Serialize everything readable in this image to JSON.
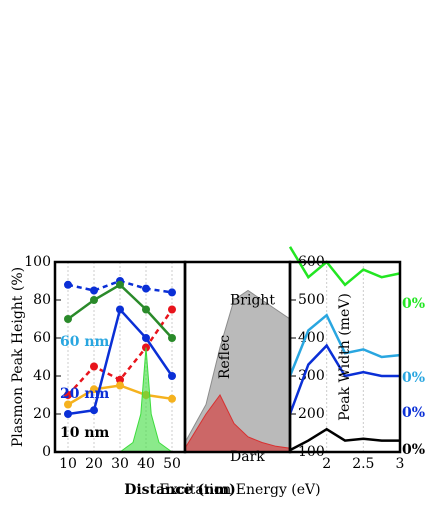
{
  "chart_data": [
    {
      "type": "line",
      "xlabel": "Distance (nm)",
      "ylabel": "Plasmon Peak Height (%)",
      "xlim": [
        5,
        55
      ],
      "xticks": [
        10,
        20,
        30,
        40,
        50
      ],
      "ylim": [
        0,
        100
      ],
      "yticks": [
        0,
        20,
        40,
        60,
        80,
        100
      ],
      "x": [
        10,
        20,
        30,
        40,
        50
      ],
      "series": [
        {
          "color": "#0a2fd6",
          "dash": true,
          "markers": true,
          "values": [
            88,
            85,
            90,
            86,
            84
          ]
        },
        {
          "color": "#e8141c",
          "dash": true,
          "markers": true,
          "values": [
            30,
            45,
            38,
            55,
            75
          ]
        },
        {
          "color": "#2a8a2a",
          "markers": true,
          "values": [
            70,
            80,
            88,
            75,
            60
          ]
        },
        {
          "color": "#f5b21e",
          "markers": true,
          "values": [
            25,
            33,
            35,
            30,
            28
          ]
        },
        {
          "color": "#0a2fd6",
          "markers": true,
          "values": [
            20,
            22,
            75,
            60,
            40
          ]
        },
        {
          "color": "#3ddc3d",
          "fill": true,
          "x": [
            30,
            35,
            38,
            40,
            42,
            45,
            50
          ],
          "values": [
            0,
            5,
            20,
            55,
            20,
            5,
            0
          ]
        }
      ],
      "annotations": [
        {
          "text": "60 nm",
          "color": "#29a6e0"
        },
        {
          "text": "20 nm",
          "color": "#0a2fd6"
        },
        {
          "text": "10 nm",
          "color": "#000000"
        }
      ]
    },
    {
      "type": "area",
      "ylabel": "Reflec",
      "xlim": [
        1.5,
        3
      ],
      "ylim": [
        0,
        1
      ],
      "x": [
        1.5,
        1.8,
        2.0,
        2.2,
        2.4,
        2.6,
        2.8,
        3.0
      ],
      "series": [
        {
          "name": "Bright",
          "color": "#8c8c8c",
          "values": [
            0.05,
            0.25,
            0.55,
            0.8,
            0.85,
            0.8,
            0.75,
            0.7
          ]
        },
        {
          "name": "Dark",
          "color": "#d83030",
          "values": [
            0.02,
            0.2,
            0.3,
            0.15,
            0.08,
            0.05,
            0.03,
            0.02
          ]
        }
      ]
    },
    {
      "type": "line",
      "ylabel": "Peak Width (meV)",
      "xlabel": "Excitation Energy (eV)",
      "xlim": [
        1.5,
        3
      ],
      "xticks": [
        2,
        2.5,
        3
      ],
      "ylim": [
        100,
        600
      ],
      "yticks": [
        100,
        200,
        300,
        400,
        500,
        600
      ],
      "x": [
        1.5,
        1.75,
        2.0,
        2.25,
        2.5,
        2.75,
        3.0
      ],
      "series": [
        {
          "color": "#22e622",
          "values": [
            640,
            560,
            600,
            540,
            580,
            560,
            570
          ]
        },
        {
          "color": "#29a6e0",
          "values": [
            300,
            420,
            460,
            360,
            370,
            350,
            355
          ]
        },
        {
          "color": "#0a2fd6",
          "values": [
            200,
            330,
            380,
            300,
            310,
            300,
            300
          ]
        },
        {
          "color": "#000000",
          "values": [
            105,
            130,
            160,
            130,
            135,
            130,
            130
          ]
        }
      ],
      "annotations": [
        {
          "text": "0%",
          "color": "#22e622"
        },
        {
          "text": "0%",
          "color": "#29a6e0"
        },
        {
          "text": "0%",
          "color": "#0a2fd6"
        },
        {
          "text": "0%",
          "color": "#000000"
        }
      ]
    }
  ]
}
